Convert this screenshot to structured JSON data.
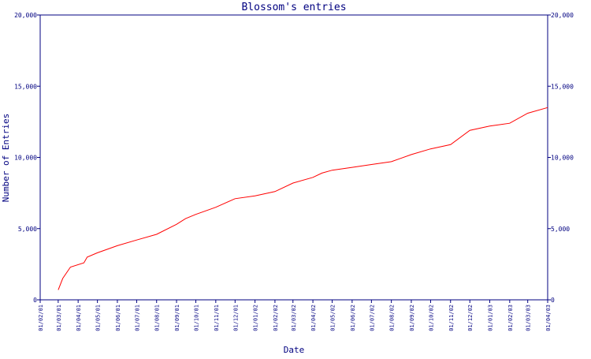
{
  "chart_data": {
    "type": "line",
    "title": "Blossom's entries",
    "xlabel": "Date",
    "ylabel": "Number of Entries",
    "ylim": [
      0,
      20000
    ],
    "yticks": [
      0,
      5000,
      10000,
      15000,
      20000
    ],
    "ytick_labels": [
      "0",
      "5,000",
      "10,000",
      "15,000",
      "20,000"
    ],
    "xlim": [
      "01/02/01",
      "01/04/03"
    ],
    "xtick_labels": [
      "01/02/01",
      "01/03/01",
      "01/04/01",
      "01/05/01",
      "01/06/01",
      "01/07/01",
      "01/08/01",
      "01/09/01",
      "01/10/01",
      "01/11/01",
      "01/12/01",
      "01/01/02",
      "01/02/02",
      "01/03/02",
      "01/04/02",
      "01/05/02",
      "01/06/02",
      "01/07/02",
      "01/08/02",
      "01/09/02",
      "01/10/02",
      "01/11/02",
      "01/12/02",
      "01/01/03",
      "01/02/03",
      "01/03/03",
      "01/04/03"
    ],
    "grid": false,
    "axis_color": "#000080",
    "series": [
      {
        "color": "#ff0000",
        "points": [
          [
            "2001-03-01",
            700
          ],
          [
            "2001-03-08",
            1500
          ],
          [
            "2001-03-20",
            2300
          ],
          [
            "2001-04-10",
            2600
          ],
          [
            "2001-04-15",
            3000
          ],
          [
            "2001-05-01",
            3300
          ],
          [
            "2001-06-01",
            3800
          ],
          [
            "2001-07-01",
            4200
          ],
          [
            "2001-08-01",
            4600
          ],
          [
            "2001-09-01",
            5300
          ],
          [
            "2001-09-15",
            5700
          ],
          [
            "2001-10-01",
            6000
          ],
          [
            "2001-11-01",
            6500
          ],
          [
            "2001-12-01",
            7100
          ],
          [
            "2002-01-01",
            7300
          ],
          [
            "2002-02-01",
            7600
          ],
          [
            "2002-03-01",
            8200
          ],
          [
            "2002-04-01",
            8600
          ],
          [
            "2002-04-15",
            8900
          ],
          [
            "2002-05-01",
            9100
          ],
          [
            "2002-06-01",
            9300
          ],
          [
            "2002-07-01",
            9500
          ],
          [
            "2002-08-01",
            9700
          ],
          [
            "2002-09-01",
            10200
          ],
          [
            "2002-10-01",
            10600
          ],
          [
            "2002-11-01",
            10900
          ],
          [
            "2002-12-01",
            11900
          ],
          [
            "2003-01-01",
            12200
          ],
          [
            "2003-02-01",
            12400
          ],
          [
            "2003-03-01",
            13100
          ],
          [
            "2003-04-01",
            13500
          ]
        ]
      }
    ]
  }
}
